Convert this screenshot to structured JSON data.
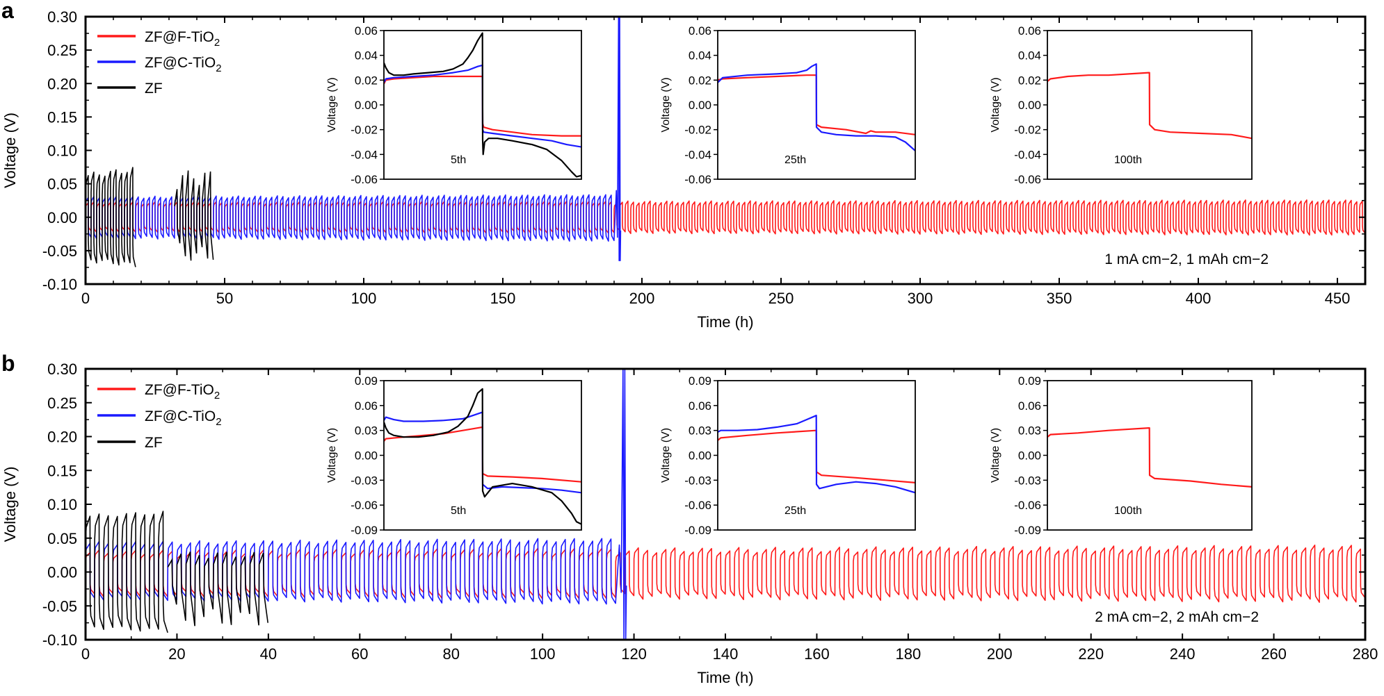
{
  "chart_data": [
    {
      "type": "line",
      "panel": "a",
      "xlabel": "Time (h)",
      "ylabel": "Voltage (V)",
      "xlim": [
        0,
        460
      ],
      "ylim": [
        -0.1,
        0.3
      ],
      "xticks": [
        0,
        50,
        100,
        150,
        200,
        250,
        300,
        350,
        400,
        450
      ],
      "yticks": [
        -0.1,
        -0.05,
        0.0,
        0.05,
        0.1,
        0.15,
        0.2,
        0.25,
        0.3
      ],
      "xtick_labels": [
        "0",
        "50",
        "100",
        "150",
        "200",
        "250",
        "300",
        "350",
        "400",
        "450"
      ],
      "ytick_labels": [
        "-0.10",
        "-0.05",
        "0.00",
        "0.05",
        "0.10",
        "0.15",
        "0.20",
        "0.25",
        "0.30"
      ],
      "condition": "1 mA cm−2, 1 mAh cm−2",
      "legend": [
        {
          "name": "ZF@F-TiO2",
          "main": "ZF@F-TiO",
          "sub": "2",
          "color": "#ff1a1a"
        },
        {
          "name": "ZF@C-TiO2",
          "main": "ZF@C-TiO",
          "sub": "2",
          "color": "#1a1aff"
        },
        {
          "name": "ZF",
          "main": "ZF",
          "sub": "",
          "color": "#000000"
        }
      ],
      "series": [
        {
          "name": "ZF@F-TiO2",
          "color": "#ff1a1a",
          "kind": "cycling",
          "t_start": 0,
          "t_end": 460,
          "cycle_period_h": 2,
          "upper_v": [
            0.02,
            0.026
          ],
          "lower_v": [
            -0.018,
            -0.027
          ]
        },
        {
          "name": "ZF@C-TiO2",
          "color": "#1a1aff",
          "kind": "cycling",
          "t_start": 0,
          "t_end": 190,
          "cycle_period_h": 2,
          "upper_v": [
            0.028,
            0.034
          ],
          "lower_v": [
            -0.028,
            -0.036
          ],
          "failure_time_h": 192,
          "failure_spike_v": [
            -0.065,
            0.3
          ]
        },
        {
          "name": "ZF",
          "color": "#000000",
          "kind": "cycling",
          "t_start": 0,
          "t_end": 17,
          "cycle_period_h": 2,
          "upper_v": [
            0.058,
            0.075
          ],
          "lower_v": [
            -0.06,
            -0.075
          ],
          "extra_burst": {
            "t_start": 32,
            "t_end": 45,
            "upper_v": 0.07,
            "lower_v": -0.065
          }
        }
      ],
      "insets": [
        {
          "label": "5th",
          "ylabel": "Voltage (V)",
          "ylim": [
            -0.06,
            0.06
          ],
          "yticks": [
            -0.06,
            -0.04,
            -0.02,
            0.0,
            0.02,
            0.04,
            0.06
          ],
          "ytick_labels": [
            "-0.06",
            "-0.04",
            "-0.02",
            "0.00",
            "0.02",
            "0.04",
            "0.06"
          ],
          "series": [
            {
              "name": "ZF@F-TiO2",
              "color": "#ff1a1a",
              "x": [
                0,
                0.02,
                0.1,
                0.3,
                0.5,
                0.998,
                1.0,
                1.01,
                1.1,
                1.3,
                1.5,
                1.8,
                2.0
              ],
              "y": [
                0.017,
                0.02,
                0.021,
                0.022,
                0.023,
                0.023,
                -0.015,
                -0.018,
                -0.02,
                -0.022,
                -0.024,
                -0.025,
                -0.025
              ]
            },
            {
              "name": "ZF@C-TiO2",
              "color": "#1a1aff",
              "x": [
                0,
                0.02,
                0.1,
                0.3,
                0.5,
                0.7,
                0.85,
                0.95,
                0.998,
                1.0,
                1.01,
                1.1,
                1.3,
                1.5,
                1.7,
                1.85,
                2.0
              ],
              "y": [
                0.018,
                0.021,
                0.022,
                0.023,
                0.024,
                0.026,
                0.028,
                0.031,
                0.032,
                -0.02,
                -0.022,
                -0.023,
                -0.025,
                -0.027,
                -0.029,
                -0.032,
                -0.034
              ]
            },
            {
              "name": "ZF",
              "color": "#000000",
              "x": [
                0,
                0.02,
                0.05,
                0.1,
                0.2,
                0.3,
                0.45,
                0.6,
                0.7,
                0.8,
                0.85,
                0.9,
                0.95,
                0.998,
                1.0,
                1.005,
                1.02,
                1.06,
                1.15,
                1.3,
                1.5,
                1.65,
                1.8,
                1.9,
                1.95,
                2.0
              ],
              "y": [
                0.034,
                0.03,
                0.026,
                0.024,
                0.024,
                0.025,
                0.026,
                0.027,
                0.029,
                0.033,
                0.038,
                0.044,
                0.052,
                0.058,
                -0.028,
                -0.04,
                -0.03,
                -0.027,
                -0.027,
                -0.029,
                -0.032,
                -0.036,
                -0.045,
                -0.054,
                -0.058,
                -0.057
              ]
            }
          ]
        },
        {
          "label": "25th",
          "ylabel": "Voltage (V)",
          "ylim": [
            -0.06,
            0.06
          ],
          "yticks": [
            -0.06,
            -0.04,
            -0.02,
            0.0,
            0.02,
            0.04,
            0.06
          ],
          "ytick_labels": [
            "-0.06",
            "-0.04",
            "-0.02",
            "0.00",
            "0.02",
            "0.04",
            "0.06"
          ],
          "series": [
            {
              "name": "ZF@F-TiO2",
              "color": "#ff1a1a",
              "x": [
                0,
                0.05,
                0.3,
                0.6,
                0.9,
                0.998,
                1.0,
                1.05,
                1.3,
                1.5,
                1.55,
                1.6,
                1.8,
                2.0
              ],
              "y": [
                0.02,
                0.021,
                0.022,
                0.023,
                0.024,
                0.024,
                -0.016,
                -0.018,
                -0.02,
                -0.023,
                -0.021,
                -0.022,
                -0.022,
                -0.024
              ]
            },
            {
              "name": "ZF@C-TiO2",
              "color": "#1a1aff",
              "x": [
                0,
                0.05,
                0.3,
                0.6,
                0.8,
                0.9,
                0.95,
                0.998,
                1.0,
                1.05,
                1.2,
                1.4,
                1.6,
                1.8,
                1.9,
                2.0
              ],
              "y": [
                0.018,
                0.022,
                0.024,
                0.025,
                0.026,
                0.028,
                0.031,
                0.033,
                -0.018,
                -0.022,
                -0.024,
                -0.025,
                -0.025,
                -0.026,
                -0.03,
                -0.037
              ]
            }
          ]
        },
        {
          "label": "100th",
          "ylabel": "Voltage (V)",
          "ylim": [
            -0.06,
            0.06
          ],
          "yticks": [
            -0.06,
            -0.04,
            -0.02,
            0.0,
            0.02,
            0.04,
            0.06
          ],
          "ytick_labels": [
            "-0.06",
            "-0.04",
            "-0.02",
            "0.00",
            "0.02",
            "0.04",
            "0.06"
          ],
          "series": [
            {
              "name": "ZF@F-TiO2",
              "color": "#ff1a1a",
              "x": [
                0,
                0.03,
                0.2,
                0.4,
                0.6,
                0.8,
                0.998,
                1.0,
                1.05,
                1.2,
                1.5,
                1.8,
                2.0
              ],
              "y": [
                0.019,
                0.021,
                0.023,
                0.024,
                0.024,
                0.025,
                0.026,
                -0.016,
                -0.02,
                -0.022,
                -0.023,
                -0.024,
                -0.027
              ]
            }
          ]
        }
      ]
    },
    {
      "type": "line",
      "panel": "b",
      "xlabel": "Time (h)",
      "ylabel": "Voltage (V)",
      "xlim": [
        0,
        280
      ],
      "ylim": [
        -0.1,
        0.3
      ],
      "xticks": [
        0,
        20,
        40,
        60,
        80,
        100,
        120,
        140,
        160,
        180,
        200,
        220,
        240,
        260,
        280
      ],
      "yticks": [
        -0.1,
        -0.05,
        0.0,
        0.05,
        0.1,
        0.15,
        0.2,
        0.25,
        0.3
      ],
      "xtick_labels": [
        "0",
        "20",
        "40",
        "60",
        "80",
        "100",
        "120",
        "140",
        "160",
        "180",
        "200",
        "220",
        "240",
        "260",
        "280"
      ],
      "ytick_labels": [
        "-0.10",
        "-0.05",
        "0.00",
        "0.05",
        "0.10",
        "0.15",
        "0.20",
        "0.25",
        "0.30"
      ],
      "condition": "2 mA cm−2, 2 mAh cm−2",
      "legend": [
        {
          "name": "ZF@F-TiO2",
          "main": "ZF@F-TiO",
          "sub": "2",
          "color": "#ff1a1a"
        },
        {
          "name": "ZF@C-TiO2",
          "main": "ZF@C-TiO",
          "sub": "2",
          "color": "#1a1aff"
        },
        {
          "name": "ZF",
          "main": "ZF",
          "sub": "",
          "color": "#000000"
        }
      ],
      "series": [
        {
          "name": "ZF@F-TiO2",
          "color": "#ff1a1a",
          "kind": "cycling",
          "t_start": 0,
          "t_end": 280,
          "cycle_period_h": 2,
          "upper_v": [
            0.025,
            0.04
          ],
          "lower_v": [
            -0.028,
            -0.045
          ]
        },
        {
          "name": "ZF@C-TiO2",
          "color": "#1a1aff",
          "kind": "cycling",
          "t_start": 0,
          "t_end": 116,
          "cycle_period_h": 2,
          "upper_v": [
            0.04,
            0.05
          ],
          "lower_v": [
            -0.035,
            -0.048
          ],
          "failure_time_h": 118,
          "failure_spike_v": [
            -0.1,
            0.3
          ]
        },
        {
          "name": "ZF",
          "color": "#000000",
          "kind": "cycling",
          "t_start": 0,
          "t_end": 17,
          "cycle_period_h": 2,
          "upper_v": [
            0.08,
            0.09
          ],
          "lower_v": [
            -0.078,
            -0.09
          ],
          "extra_burst": {
            "t_start": 18,
            "t_end": 40,
            "upper_v": 0.03,
            "lower_v": -0.08
          }
        }
      ],
      "insets": [
        {
          "label": "5th",
          "ylabel": "Voltage (V)",
          "ylim": [
            -0.09,
            0.09
          ],
          "yticks": [
            -0.09,
            -0.06,
            -0.03,
            0.0,
            0.03,
            0.06,
            0.09
          ],
          "ytick_labels": [
            "-0.09",
            "-0.06",
            "-0.03",
            "0.00",
            "0.03",
            "0.06",
            "0.09"
          ],
          "series": [
            {
              "name": "ZF@F-TiO2",
              "color": "#ff1a1a",
              "x": [
                0,
                0.02,
                0.2,
                0.4,
                0.6,
                0.8,
                0.998,
                1.0,
                1.05,
                1.3,
                1.6,
                2.0
              ],
              "y": [
                0.017,
                0.02,
                0.022,
                0.024,
                0.026,
                0.03,
                0.034,
                -0.022,
                -0.025,
                -0.026,
                -0.028,
                -0.032
              ]
            },
            {
              "name": "ZF@C-TiO2",
              "color": "#1a1aff",
              "x": [
                0,
                0.02,
                0.1,
                0.2,
                0.4,
                0.6,
                0.8,
                0.9,
                0.998,
                1.0,
                1.05,
                1.2,
                1.4,
                1.6,
                1.8,
                2.0
              ],
              "y": [
                0.042,
                0.046,
                0.043,
                0.041,
                0.041,
                0.042,
                0.044,
                0.048,
                0.052,
                -0.035,
                -0.04,
                -0.038,
                -0.039,
                -0.04,
                -0.042,
                -0.045
              ]
            },
            {
              "name": "ZF",
              "color": "#000000",
              "x": [
                0,
                0.02,
                0.05,
                0.1,
                0.2,
                0.35,
                0.5,
                0.65,
                0.75,
                0.85,
                0.9,
                0.95,
                0.998,
                1.0,
                1.02,
                1.1,
                1.3,
                1.5,
                1.7,
                1.8,
                1.9,
                1.95,
                2.0
              ],
              "y": [
                0.04,
                0.033,
                0.027,
                0.024,
                0.022,
                0.022,
                0.024,
                0.028,
                0.035,
                0.047,
                0.06,
                0.075,
                0.08,
                -0.043,
                -0.05,
                -0.038,
                -0.034,
                -0.038,
                -0.045,
                -0.055,
                -0.07,
                -0.08,
                -0.083
              ]
            }
          ]
        },
        {
          "label": "25th",
          "ylabel": "Voltage (V)",
          "ylim": [
            -0.09,
            0.09
          ],
          "yticks": [
            -0.09,
            -0.06,
            -0.03,
            0.0,
            0.03,
            0.06,
            0.09
          ],
          "ytick_labels": [
            "-0.09",
            "-0.06",
            "-0.03",
            "0.00",
            "0.03",
            "0.06",
            "0.09"
          ],
          "series": [
            {
              "name": "ZF@F-TiO2",
              "color": "#ff1a1a",
              "x": [
                0,
                0.03,
                0.3,
                0.6,
                0.998,
                1.0,
                1.05,
                1.4,
                1.7,
                2.0
              ],
              "y": [
                0.018,
                0.021,
                0.024,
                0.027,
                0.03,
                -0.02,
                -0.024,
                -0.027,
                -0.03,
                -0.033
              ]
            },
            {
              "name": "ZF@C-TiO2",
              "color": "#1a1aff",
              "x": [
                0,
                0.03,
                0.2,
                0.4,
                0.6,
                0.8,
                0.9,
                0.998,
                1.0,
                1.03,
                1.2,
                1.4,
                1.6,
                1.8,
                2.0
              ],
              "y": [
                0.028,
                0.03,
                0.03,
                0.031,
                0.034,
                0.038,
                0.043,
                0.048,
                -0.035,
                -0.04,
                -0.035,
                -0.032,
                -0.034,
                -0.038,
                -0.045
              ]
            }
          ]
        },
        {
          "label": "100th",
          "ylabel": "Voltage (V)",
          "ylim": [
            -0.09,
            0.09
          ],
          "yticks": [
            -0.09,
            -0.06,
            -0.03,
            0.0,
            0.03,
            0.06,
            0.09
          ],
          "ytick_labels": [
            "-0.09",
            "-0.06",
            "-0.03",
            "0.00",
            "0.03",
            "0.06",
            "0.09"
          ],
          "series": [
            {
              "name": "ZF@F-TiO2",
              "color": "#ff1a1a",
              "x": [
                0,
                0.03,
                0.3,
                0.6,
                0.998,
                1.0,
                1.05,
                1.4,
                1.7,
                2.0
              ],
              "y": [
                0.022,
                0.025,
                0.027,
                0.03,
                0.033,
                -0.024,
                -0.028,
                -0.031,
                -0.035,
                -0.038
              ]
            }
          ]
        }
      ]
    }
  ]
}
